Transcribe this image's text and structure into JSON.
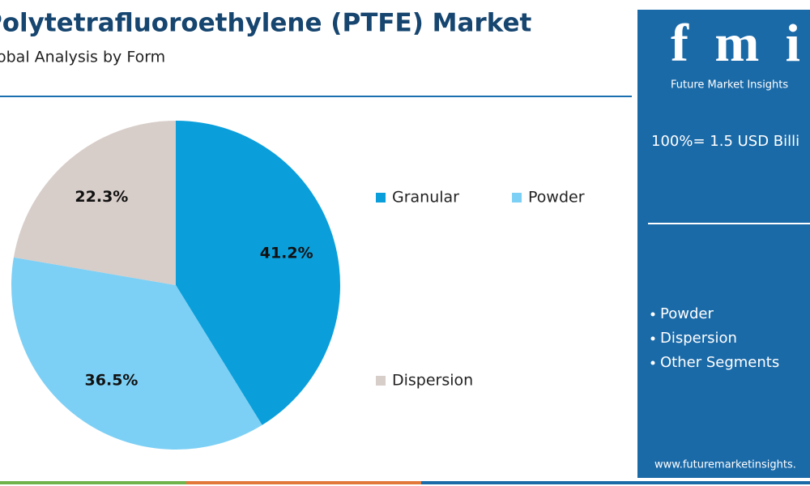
{
  "chart_data": {
    "type": "pie",
    "title": "Polytetrafluoroethylene (PTFE) Market",
    "subtitle": "Global Analysis by Form",
    "categories": [
      "Granular",
      "Powder",
      "Dispersion"
    ],
    "values": [
      41.2,
      36.5,
      22.3
    ],
    "value_labels": [
      "41.2%",
      "36.5%",
      "22.3%"
    ],
    "colors": [
      "#0a9fdb",
      "#7dd0f5",
      "#d7cdc9"
    ]
  },
  "panel": {
    "logo": "fmi",
    "brand": "Future Market Insights",
    "total": "100%= 1.5 USD Billi",
    "segments": [
      "Powder",
      "Dispersion",
      "Other Segments"
    ],
    "url": "www.futuremarketinsights."
  }
}
